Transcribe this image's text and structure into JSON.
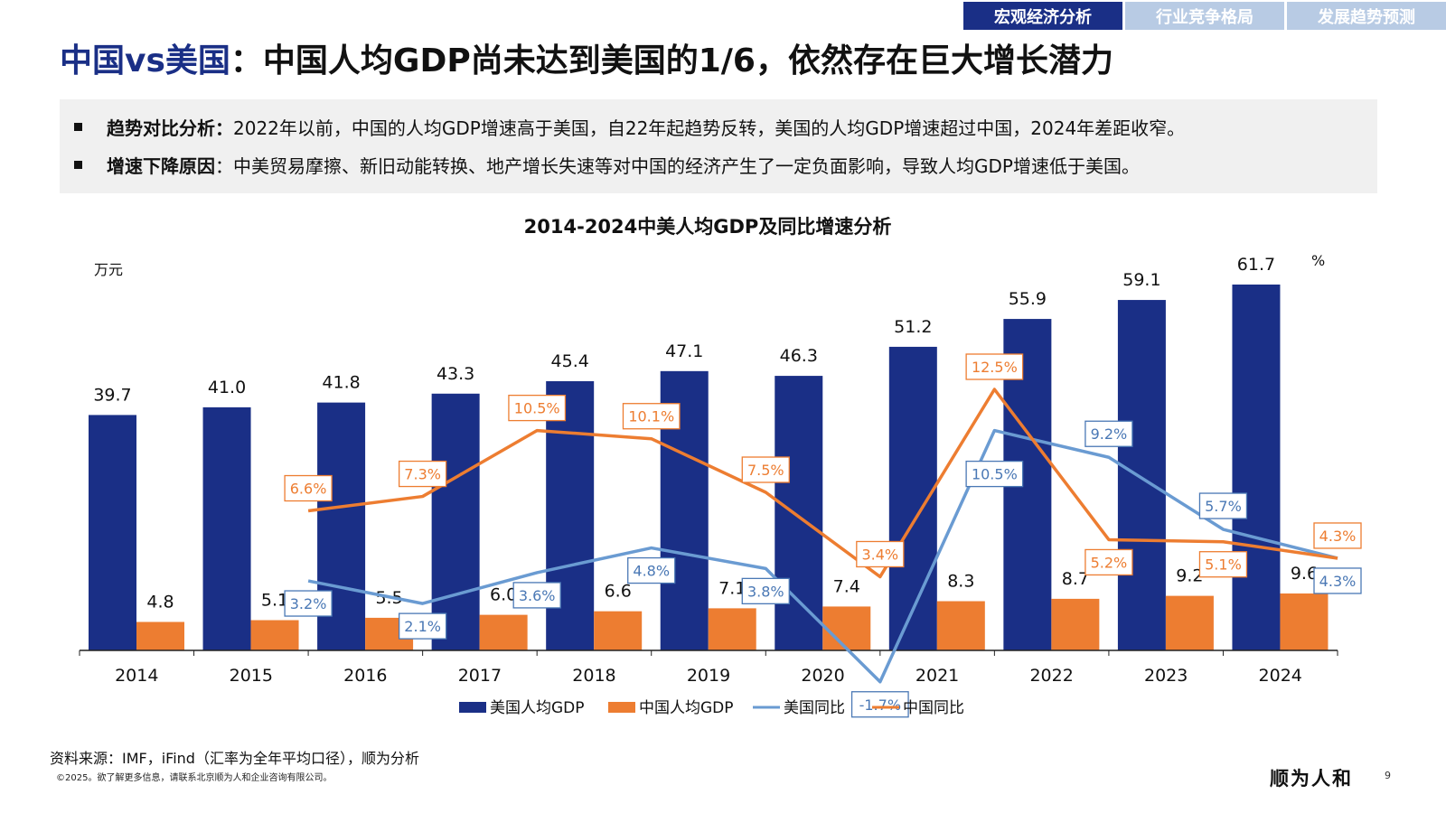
{
  "nav": {
    "tabs": [
      {
        "label": "宏观经济分析",
        "active": true
      },
      {
        "label": "行业竞争格局",
        "active": false
      },
      {
        "label": "发展趋势预测",
        "active": false
      }
    ]
  },
  "header": {
    "title_accent": "中国vs美国",
    "title_rest": "：中国人均GDP尚未达到美国的1/6，依然存在巨大增长潜力"
  },
  "summary": {
    "items": [
      {
        "label": "趋势对比分析：",
        "text": "2022年以前，中国的人均GDP增速高于美国，自22年起趋势反转，美国的人均GDP增速超过中国，2024年差距收窄。"
      },
      {
        "label": "增速下降原因",
        "text": "：中美贸易摩擦、新旧动能转换、地产增长失速等对中国的经济产生了一定负面影响，导致人均GDP增速低于美国。"
      }
    ]
  },
  "chart_data": {
    "type": "bar",
    "title": "2014-2024中美人均GDP及同比增速分析",
    "ylabel_left": "万元",
    "ylabel_right": "%",
    "categories": [
      "2014",
      "2015",
      "2016",
      "2017",
      "2018",
      "2019",
      "2020",
      "2021",
      "2022",
      "2023",
      "2024"
    ],
    "ylim": [
      0,
      70
    ],
    "grid": false,
    "legend_position": "bottom",
    "colors": {
      "usa_bar": "#1a2f86",
      "china_bar": "#ed7d31",
      "usa_line": "#6a9bd2",
      "china_line": "#ed7d31"
    },
    "series": [
      {
        "name": "美国人均GDP",
        "kind": "bar",
        "values": [
          39.7,
          41.0,
          41.8,
          43.3,
          45.4,
          47.1,
          46.3,
          51.2,
          55.9,
          59.1,
          61.7
        ],
        "labels": [
          "39.7",
          "41.0",
          "41.8",
          "43.3",
          "45.4",
          "47.1",
          "46.3",
          "51.2",
          "55.9",
          "59.1",
          "61.7"
        ]
      },
      {
        "name": "中国人均GDP",
        "kind": "bar",
        "values": [
          4.8,
          5.1,
          5.5,
          6.0,
          6.6,
          7.1,
          7.4,
          8.3,
          8.7,
          9.2,
          9.6
        ],
        "labels": [
          "4.8",
          "5.1",
          "5.5",
          "6.0",
          "6.6",
          "7.1",
          "7.4",
          "8.3",
          "8.7",
          "9.2",
          "9.6"
        ]
      },
      {
        "name": "美国同比",
        "kind": "line",
        "values": [
          null,
          3.2,
          2.1,
          3.6,
          4.8,
          3.8,
          -1.7,
          10.5,
          9.2,
          5.7,
          4.3
        ],
        "labels": [
          "",
          "3.2%",
          "2.1%",
          "3.6%",
          "4.8%",
          "3.8%",
          "-1.7%",
          "10.5%",
          "9.2%",
          "5.7%",
          "4.3%"
        ]
      },
      {
        "name": "中国同比",
        "kind": "line",
        "values": [
          null,
          6.6,
          7.3,
          10.5,
          10.1,
          7.5,
          3.4,
          12.5,
          5.2,
          5.1,
          4.3
        ],
        "labels": [
          "",
          "6.6%",
          "7.3%",
          "10.5%",
          "10.1%",
          "7.5%",
          "3.4%",
          "12.5%",
          "5.2%",
          "5.1%",
          "4.3%"
        ]
      }
    ]
  },
  "footer": {
    "source": "资料来源：IMF，iFind（汇率为全年平均口径），顺为分析",
    "copyright": "©2025。欲了解更多信息，请联系北京顺为人和企业咨询有限公司。",
    "logo_text": "顺为人和",
    "page_number": "9"
  }
}
